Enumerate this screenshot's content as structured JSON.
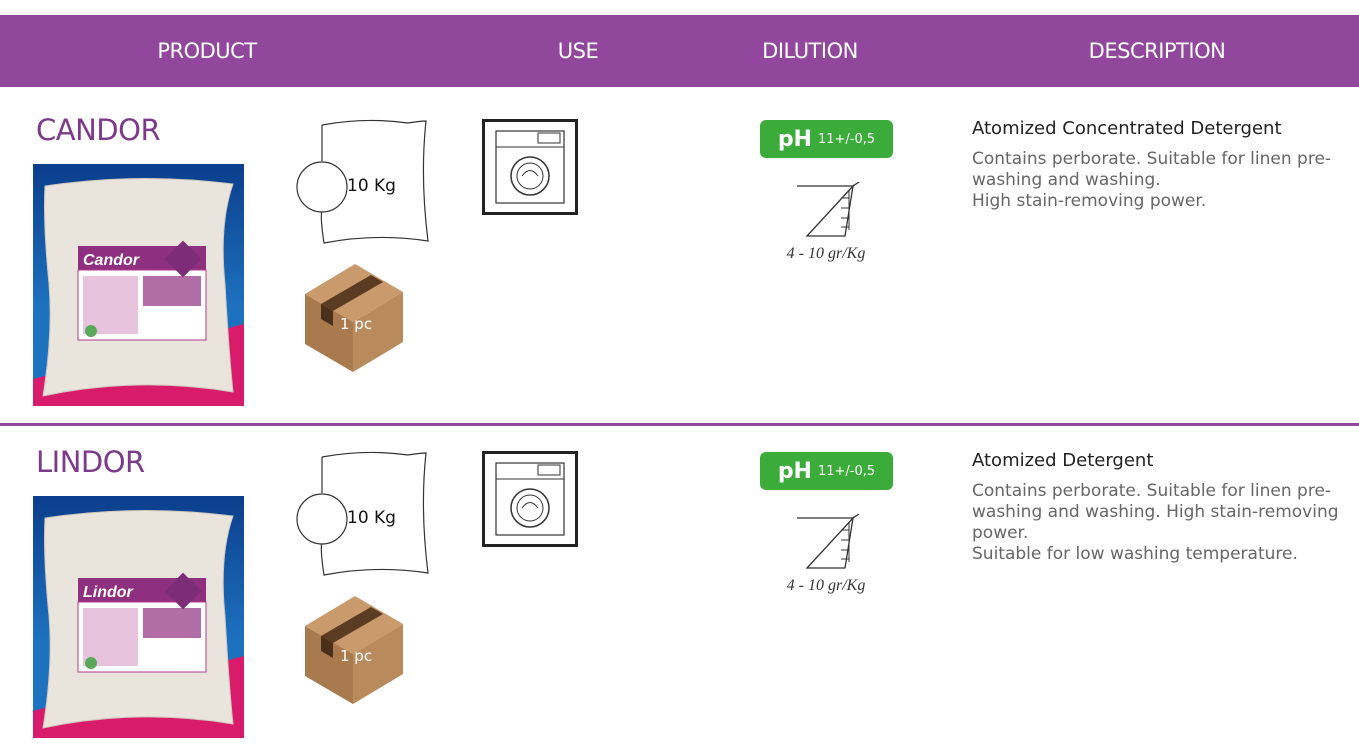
{
  "header": {
    "columns": [
      "PRODUCT",
      "USE",
      "DILUTION",
      "DESCRIPTION"
    ]
  },
  "products": [
    {
      "name": "CANDOR",
      "brand": "Candor",
      "weight": "10 Kg",
      "pack": "1 pc",
      "ph_label": "pH",
      "ph_value": "11+/-0,5",
      "dose": "4 - 10 gr/Kg",
      "desc_title": "Atomized Concentrated Detergent",
      "desc": [
        "Contains perborate. Suitable for linen pre-washing and washing.",
        "High stain-removing power."
      ]
    },
    {
      "name": "LINDOR",
      "brand": "Lindor",
      "weight": "10 Kg",
      "pack": "1 pc",
      "ph_label": "pH",
      "ph_value": "11+/-0,5",
      "dose": "4 - 10 gr/Kg",
      "desc_title": "Atomized Detergent",
      "desc": [
        "Contains perborate. Suitable for linen pre-washing and washing. High stain-removing power.",
        "Suitable for low washing temperature."
      ]
    }
  ]
}
